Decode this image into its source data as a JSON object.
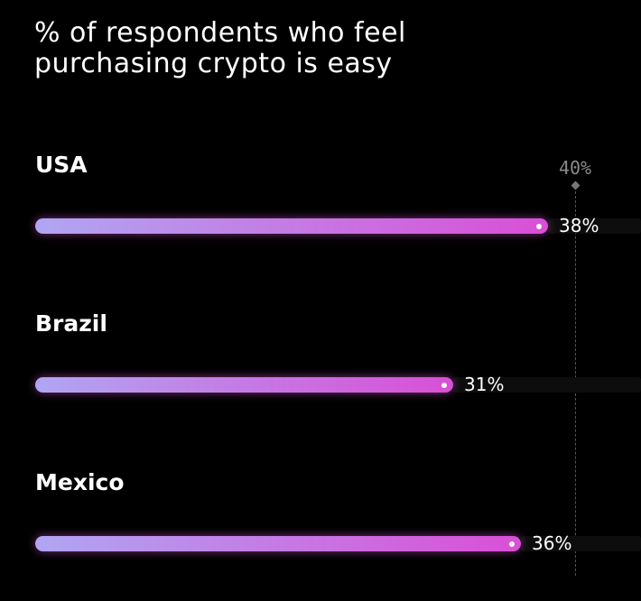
{
  "title": {
    "line1": "% of respondents who feel",
    "line2": "purchasing crypto is easy"
  },
  "colors": {
    "background": "#000000",
    "bar_start": "#b0a6f2",
    "bar_end": "#d94fd6",
    "track": "#0d0d0d",
    "reference": "#777777"
  },
  "chart_data": {
    "type": "bar",
    "orientation": "horizontal",
    "title": "% of respondents who feel purchasing crypto is easy",
    "categories": [
      "USA",
      "Brazil",
      "Mexico"
    ],
    "values": [
      38,
      31,
      36
    ],
    "value_labels": [
      "38%",
      "31%",
      "36%"
    ],
    "unit": "%",
    "reference_line": {
      "value": 40,
      "label": "40%"
    },
    "xlim": [
      0,
      44
    ],
    "xlabel": "",
    "ylabel": "",
    "grid": false
  }
}
